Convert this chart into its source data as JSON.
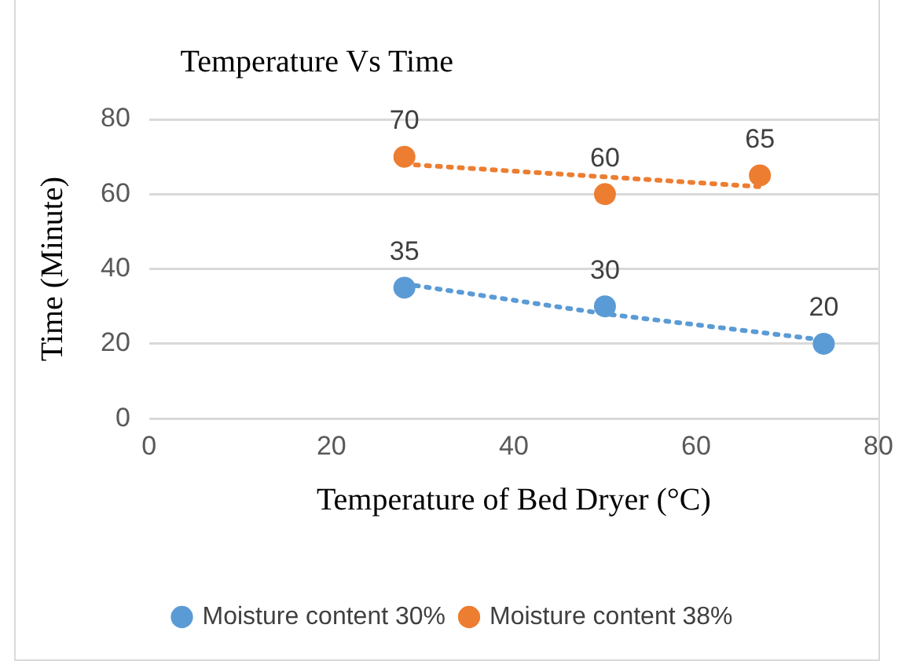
{
  "chart_data": {
    "type": "scatter",
    "title": "Temperature Vs Time",
    "xlabel": "Temperature of Bed Dryer (°C)",
    "ylabel": "Time (Minute)",
    "xlim": [
      0,
      80
    ],
    "xticks": [
      0,
      20,
      40,
      60,
      80
    ],
    "ylim": [
      0,
      80
    ],
    "yticks": [
      0,
      20,
      40,
      60,
      80
    ],
    "grid": "y",
    "legend": "bottom",
    "marker": "circle",
    "series": [
      {
        "name": "Moisture content 30%",
        "color": "#5b9bd5",
        "x": [
          28,
          50,
          74
        ],
        "values": [
          35,
          30,
          20
        ],
        "value_labels": [
          "35",
          "30",
          "20"
        ]
      },
      {
        "name": "Moisture content 38%",
        "color": "#ed7d31",
        "x": [
          28,
          50,
          67
        ],
        "values": [
          70,
          60,
          65
        ],
        "value_labels": [
          "70",
          "60",
          "65"
        ]
      },
      {
        "type": "line",
        "color": "#5b9bd5",
        "line_style": "dotted",
        "marker": "none",
        "x": [
          28,
          50,
          74
        ],
        "values": [
          36,
          28,
          21
        ]
      },
      {
        "type": "line",
        "color": "#ed7d31",
        "line_style": "dotted",
        "marker": "none",
        "x": [
          28,
          67
        ],
        "values": [
          68,
          62
        ]
      }
    ]
  }
}
